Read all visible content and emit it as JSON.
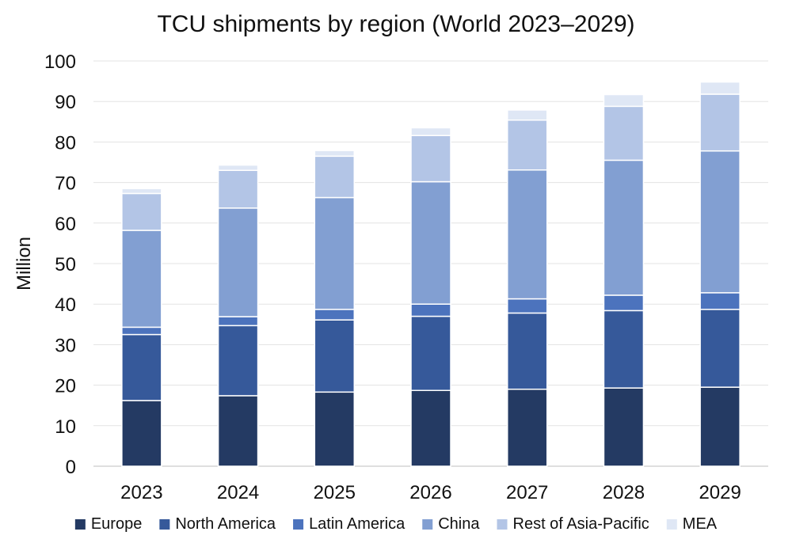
{
  "chart_data": {
    "type": "bar",
    "stacked": true,
    "title": "TCU shipments by region (World 2023–2029)",
    "xlabel": "",
    "ylabel": "Million",
    "ylim": [
      0,
      100
    ],
    "yticks": [
      0,
      10,
      20,
      30,
      40,
      50,
      60,
      70,
      80,
      90,
      100
    ],
    "grid": "horizontal",
    "legend_position": "bottom",
    "categories": [
      "2023",
      "2024",
      "2025",
      "2026",
      "2027",
      "2028",
      "2029"
    ],
    "series": [
      {
        "name": "Europe",
        "color": "#243a63",
        "values": [
          16.2,
          17.4,
          18.3,
          18.7,
          19.0,
          19.3,
          19.5
        ]
      },
      {
        "name": "North America",
        "color": "#36599a",
        "values": [
          16.3,
          17.3,
          17.8,
          18.3,
          18.8,
          19.1,
          19.2
        ]
      },
      {
        "name": "Latin America",
        "color": "#4c73bd",
        "values": [
          1.8,
          2.2,
          2.6,
          3.0,
          3.5,
          3.8,
          4.1
        ]
      },
      {
        "name": "China",
        "color": "#829fd2",
        "values": [
          23.9,
          26.8,
          27.6,
          30.2,
          31.8,
          33.3,
          35.0
        ]
      },
      {
        "name": "Rest of Asia-Pacific",
        "color": "#b3c5e6",
        "values": [
          9.1,
          9.3,
          10.2,
          11.4,
          12.3,
          13.3,
          14.0
        ]
      },
      {
        "name": "MEA",
        "color": "#dfe7f5",
        "values": [
          1.2,
          1.3,
          1.4,
          1.9,
          2.5,
          2.9,
          3.0
        ]
      }
    ]
  }
}
